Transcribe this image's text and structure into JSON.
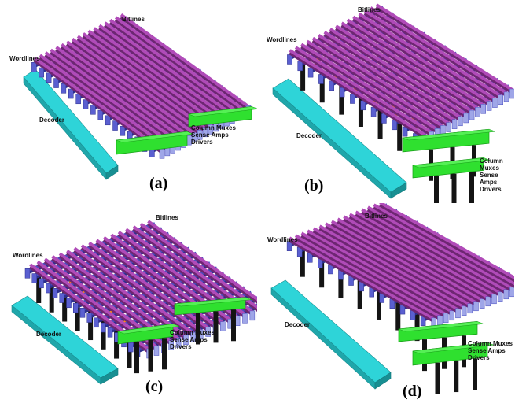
{
  "panels": [
    {
      "id": "a",
      "caption": "(a)",
      "labels": {
        "bitlines": "Bitlines",
        "wordlines": "Wordlines",
        "decoder": "Decoder",
        "column": "Column Muxes\nSense Amps\nDrivers"
      }
    },
    {
      "id": "b",
      "caption": "(b)",
      "labels": {
        "bitlines": "Bitlines",
        "wordlines": "Wordlines",
        "decoder": "Decoder",
        "column": "Column Muxes\nSense Amps\nDrivers"
      }
    },
    {
      "id": "c",
      "caption": "(c)",
      "labels": {
        "bitlines": "Bitlines",
        "wordlines": "Wordlines",
        "decoder": "Decoder",
        "column": "Column Muxes\nSense Amps\nDrivers"
      }
    },
    {
      "id": "d",
      "caption": "(d)",
      "labels": {
        "bitlines": "Bitlines",
        "wordlines": "Wordlines",
        "decoder": "Decoder",
        "column": "Column Muxes\nSense Amps\nDrivers"
      }
    }
  ],
  "colors": {
    "bitline": "#b04bb8",
    "wordline": "#4a4ec0",
    "decoder": "#2ed4d8",
    "column_block": "#2fe02f",
    "via": "#ff8a1a",
    "tsv": "#141414"
  }
}
